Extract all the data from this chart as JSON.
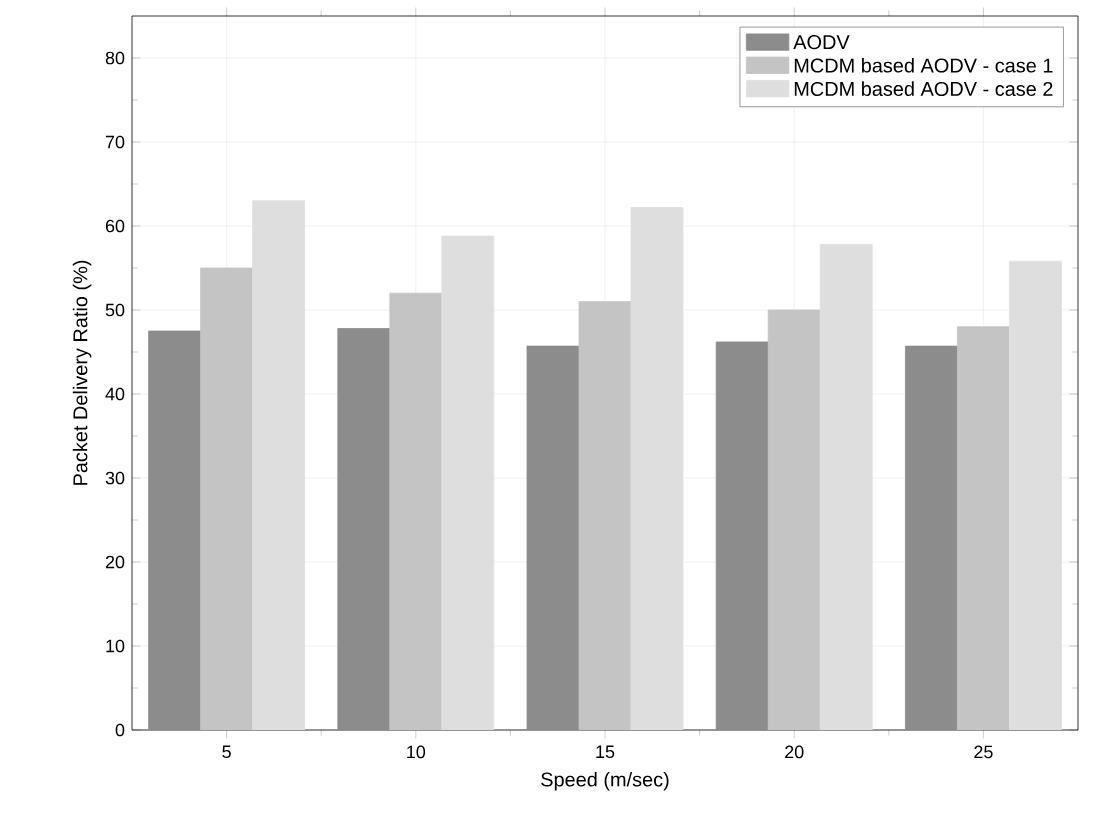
{
  "chart_data": {
    "type": "bar",
    "xlabel": "Speed (m/sec)",
    "ylabel": "Packet Delivery Ratio (%)",
    "categories": [
      "5",
      "10",
      "15",
      "20",
      "25"
    ],
    "series": [
      {
        "name": "AODV",
        "color": "#8c8c8c",
        "values": [
          47.5,
          47.8,
          45.7,
          46.2,
          45.7
        ]
      },
      {
        "name": "MCDM based AODV - case 1",
        "color": "#c4c4c4",
        "values": [
          55,
          52,
          51,
          50,
          48
        ]
      },
      {
        "name": "MCDM based AODV - case 2",
        "color": "#dedede",
        "values": [
          63,
          58.8,
          62.2,
          57.8,
          55.8
        ]
      }
    ],
    "ylim": [
      0,
      85
    ],
    "yticks": [
      0,
      10,
      20,
      30,
      40,
      50,
      60,
      70,
      80
    ],
    "grid": true,
    "legend": "top right"
  }
}
